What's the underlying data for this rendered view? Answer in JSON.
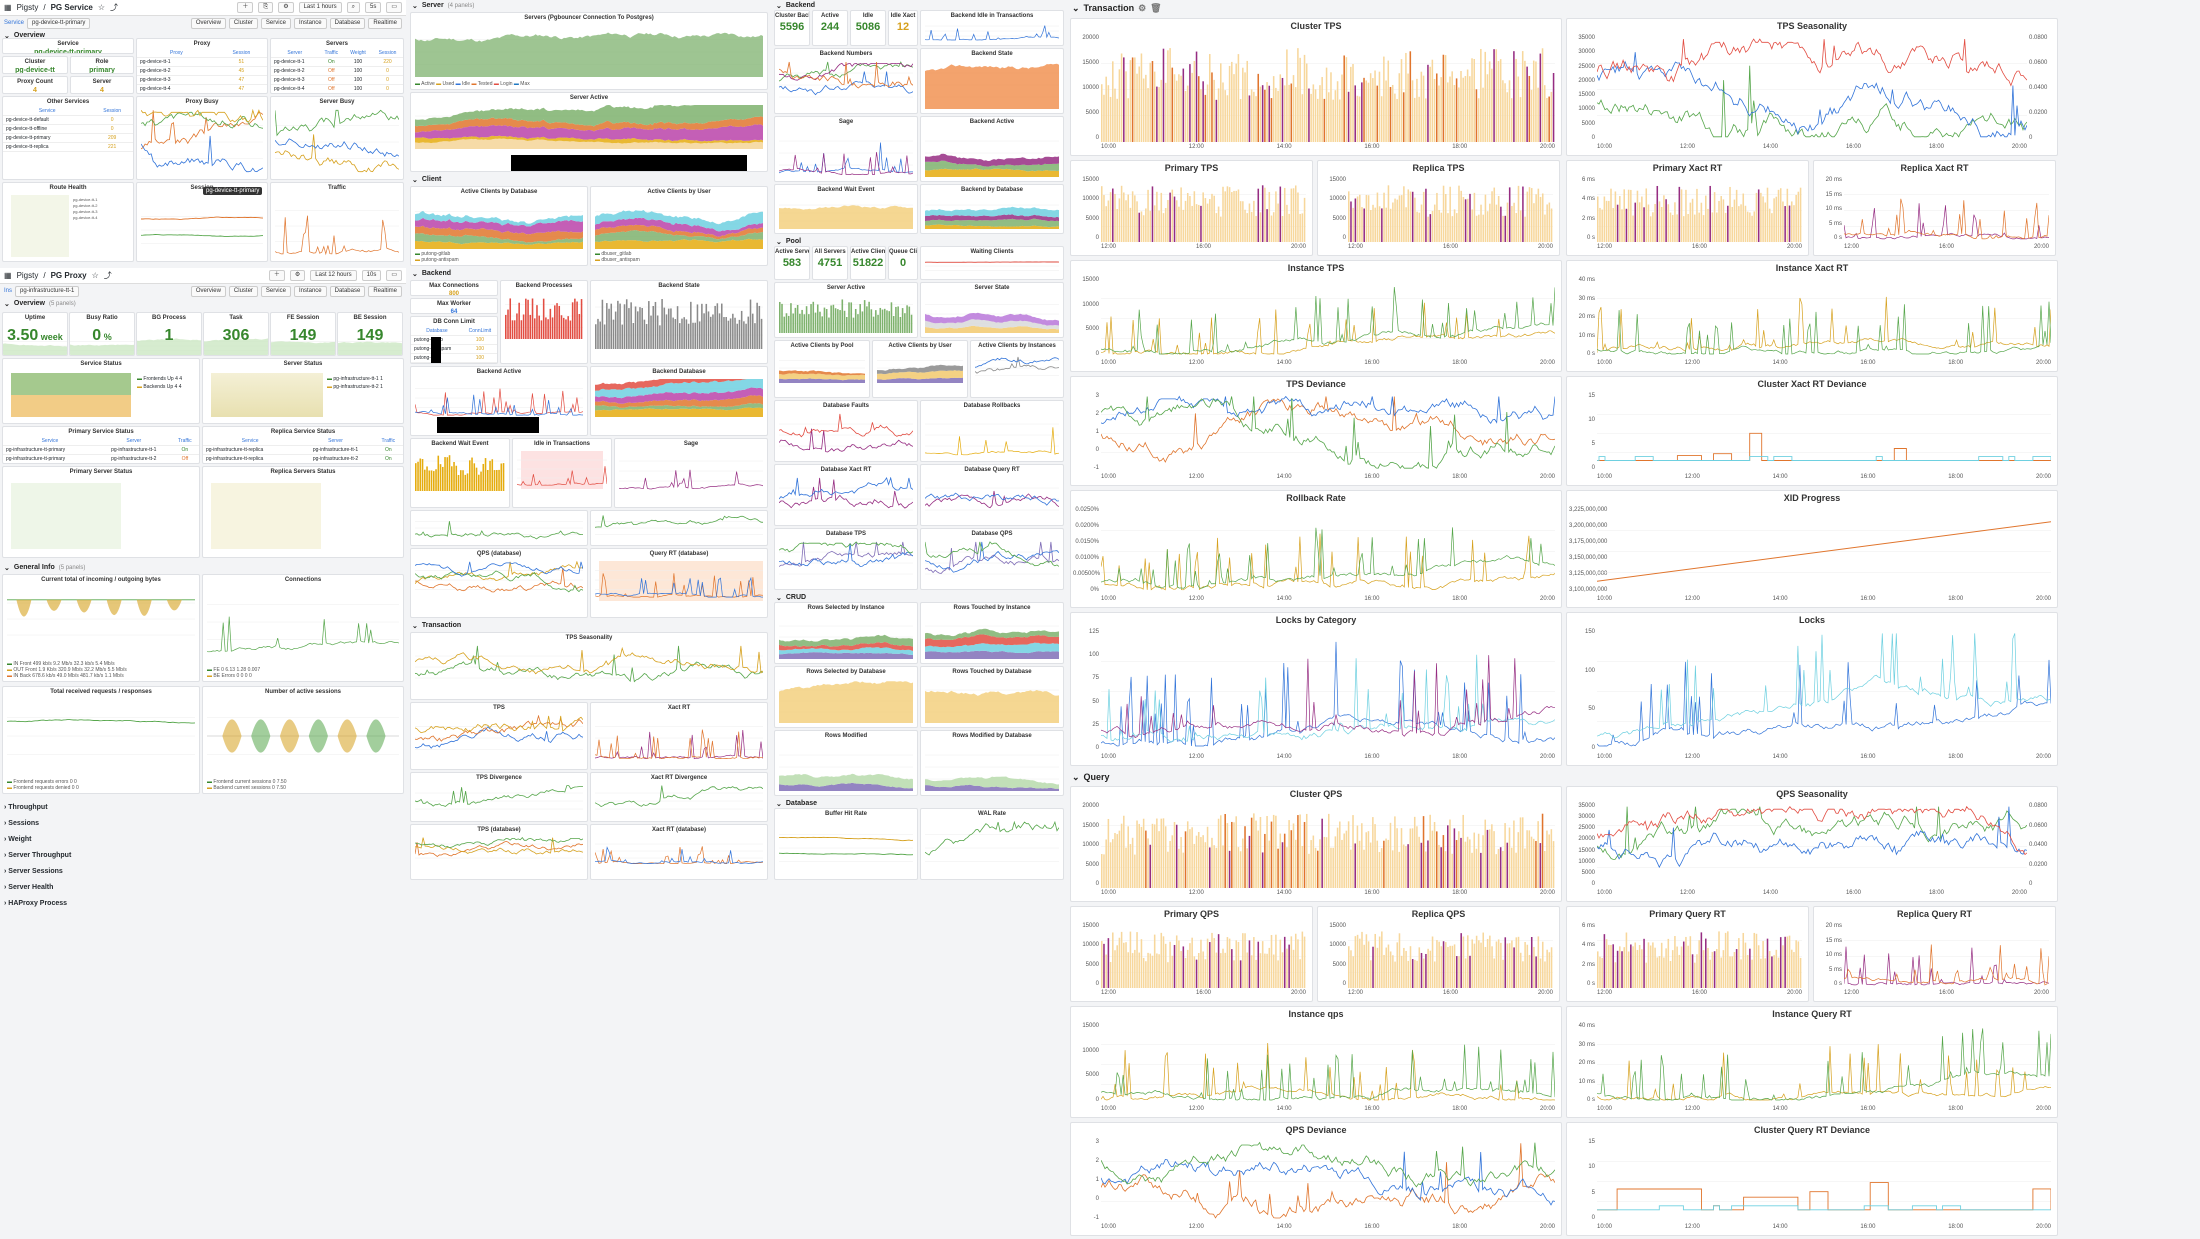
{
  "pgsvc": {
    "breadcrumb_root": "Pigsty",
    "breadcrumb_page": "PG Service",
    "time": "Last 1 hours",
    "refresh": "5s",
    "var_label": "Service",
    "var_value": "pg-device-tt-primary",
    "links": [
      "Overview",
      "Cluster",
      "Service",
      "Instance",
      "Database",
      "Realtime"
    ],
    "row_overview": "Overview",
    "service_title": "Service",
    "service_value": "pg-device-tt-primary",
    "cluster_title": "Cluster",
    "cluster_value": "pg-device-tt",
    "role_title": "Role",
    "role_value": "primary",
    "proxy_count_title": "Proxy Count",
    "proxy_count_value": "4",
    "server_title": "Server",
    "server_value": "4",
    "proxy_table": {
      "title": "Proxy",
      "cols": [
        "Proxy",
        "Session"
      ],
      "rows": [
        [
          "pg-device-tt-1",
          "51"
        ],
        [
          "pg-device-tt-2",
          "45"
        ],
        [
          "pg-device-tt-3",
          "47"
        ],
        [
          "pg-device-tt-4",
          "47"
        ]
      ]
    },
    "servers_table": {
      "title": "Servers",
      "cols": [
        "Server",
        "Traffic",
        "Weight",
        "Session"
      ],
      "rows": [
        [
          "pg-device-tt-1",
          "On",
          "100",
          "220"
        ],
        [
          "pg-device-tt-2",
          "Off",
          "100",
          "0"
        ],
        [
          "pg-device-tt-3",
          "Off",
          "100",
          "0"
        ],
        [
          "pg-device-tt-4",
          "Off",
          "100",
          "0"
        ]
      ]
    },
    "other_services": {
      "title": "Other Services",
      "cols": [
        "Service",
        "Session"
      ],
      "rows": [
        [
          "pg-device-tt-default",
          "0"
        ],
        [
          "pg-device-tt-offline",
          "0"
        ],
        [
          "pg-device-tt-primary",
          "209"
        ],
        [
          "pg-device-tt-replica",
          "221"
        ]
      ]
    },
    "proxy_busy": "Proxy Busy",
    "server_busy": "Server Busy",
    "route_health": "Route Health",
    "session": "Session",
    "traffic": "Traffic",
    "tooltip": "pg-device-tt-primary",
    "legend_busy": [
      "pg-device-tt-1",
      "pg-device-tt-2",
      "pg-device-tt-3",
      "pg-device-tt-4"
    ]
  },
  "pgproxy": {
    "breadcrumb_root": "Pigsty",
    "breadcrumb_page": "PG Proxy",
    "time": "Last 12 hours",
    "refresh": "10s",
    "var_label": "Ins",
    "var_value": "pg-infrastructure-tt-1",
    "links": [
      "Overview",
      "Cluster",
      "Service",
      "Instance",
      "Database",
      "Realtime"
    ],
    "row_overview": "Overview",
    "row_overview_cnt": "(5 panels)",
    "stats": [
      {
        "title": "Uptime",
        "value": "3.50",
        "unit": "week"
      },
      {
        "title": "Busy Ratio",
        "value": "0",
        "unit": "%"
      },
      {
        "title": "BG Process",
        "value": "1",
        "unit": ""
      },
      {
        "title": "Task",
        "value": "306",
        "unit": ""
      },
      {
        "title": "FE Session",
        "value": "149",
        "unit": ""
      },
      {
        "title": "BE Session",
        "value": "149",
        "unit": ""
      }
    ],
    "service_status": "Service Status",
    "server_status": "Server Status",
    "svc_legend": [
      [
        "Frontends Up",
        "4",
        "4"
      ],
      [
        "Backends Up",
        "4",
        "4"
      ]
    ],
    "srv_legend": [
      [
        "pg-infrastructure-tt-1",
        "1",
        "1"
      ],
      [
        "pg-infrastructure-tt-2",
        "1",
        "1"
      ]
    ],
    "primary_service_status": {
      "title": "Primary Service Status",
      "cols": [
        "Service",
        "Server",
        "Traffic"
      ],
      "rows": [
        [
          "pg-infrastructure-tt-primary",
          "pg-infrastructure-tt-1",
          "On"
        ],
        [
          "pg-infrastructure-tt-primary",
          "pg-infrastructure-tt-2",
          "Off"
        ]
      ]
    },
    "replica_service_status": {
      "title": "Replica Service Status",
      "cols": [
        "Service",
        "Server",
        "Traffic"
      ],
      "rows": [
        [
          "pg-infrastructure-tt-replica",
          "pg-infrastructure-tt-1",
          "On"
        ],
        [
          "pg-infrastructure-tt-replica",
          "pg-infrastructure-tt-2",
          "On"
        ]
      ]
    },
    "primary_server_status": "Primary Server Status",
    "replica_servers_status": "Replica Servers Status",
    "row_general": "General Info",
    "row_general_cnt": "(5 panels)",
    "bytes_title": "Current total of incoming / outgoing bytes",
    "connections": "Connections",
    "total_req": "Total received requests / responses",
    "active_sessions": "Number of active sessions",
    "bytes_legend": [
      [
        "IN Front",
        "499 kb/s",
        "9.2 Mb/s",
        "32.3 kb/s",
        "5.4 Mb/s"
      ],
      [
        "OUT Front",
        "1.9 Kb/s",
        "320.9 Mb/s",
        "32.2 Mb/s",
        "5.5 Mb/s"
      ],
      [
        "IN Back",
        "678.6 kb/s",
        "49.0 Mb/s",
        "481.7 kb/s",
        "1.1 Mb/s"
      ]
    ],
    "conn_legend": [
      [
        "FE",
        "0",
        "6.13",
        "1.28",
        "0.007"
      ],
      [
        "BE Errors",
        "0",
        "0",
        "0",
        "0"
      ]
    ],
    "req_legend": [
      [
        "Frontend requests errors",
        "0",
        "0",
        "0",
        "0"
      ],
      [
        "Frontend requests denied",
        "0",
        "0",
        "0",
        "0"
      ]
    ],
    "sess_legend": [
      [
        "Frontend current sessions",
        "0",
        "7.50",
        "1.50",
        "0"
      ],
      [
        "Backend current sessions",
        "0",
        "7.50",
        "1.50",
        "0"
      ]
    ],
    "collapsed_rows": [
      "Throughput",
      "Sessions",
      "Weight",
      "Server Throughput",
      "Server Sessions",
      "Server Health",
      "HAProxy Process"
    ]
  },
  "col2": {
    "row_server": "Server",
    "row_server_cnt": "(4 panels)",
    "servers_title": "Servers (Pgbouncer Connection To Postgres)",
    "server_active": "Server Active",
    "servers_legend": [
      "Active",
      "Used",
      "Idle",
      "Tested",
      "Login",
      "Max"
    ],
    "row_client": "Client",
    "active_clients_db": "Active Clients by Database",
    "active_clients_user": "Active Clients by User",
    "clients_db_legend": [
      "putong-gitlab",
      "putong-antispam"
    ],
    "clients_user_legend": [
      "dbuser_gitlab",
      "dbuser_antispam"
    ],
    "row_backend": "Backend",
    "max_conn": "Max Connections",
    "max_conn_value": "800",
    "max_worker": "Max Worker",
    "max_worker_value": "64",
    "db_conn_limit": {
      "title": "DB Conn Limit",
      "cols": [
        "Database",
        "ConnLimit"
      ],
      "rows": [
        [
          "putong-gitlab",
          "100"
        ],
        [
          "putong-antispam",
          "100"
        ],
        [
          "putong-ms",
          "100"
        ]
      ]
    },
    "backend_processes": "Backend Processes",
    "backend_state": "Backend State",
    "backend_active": "Backend Active",
    "backend_database": "Backend Database",
    "backend_wait_event": "Backend Wait Event",
    "idle_in_tx": "Idle in Transactions",
    "sage": "Sage",
    "qps_db": "QPS (database)",
    "query_rt_db": "Query RT (database)",
    "row_transaction": "Transaction",
    "tps_seasonality": "TPS Seasonality",
    "tps": "TPS",
    "xact_rt": "Xact RT",
    "tps_divergence": "TPS Divergence",
    "xact_rt_divergence": "Xact RT Divergence",
    "tps_db": "TPS (database)",
    "xact_rt_db": "Xact RT (database)"
  },
  "col3": {
    "row_backend": "Backend",
    "cluster_backends": "Cluster Backe...",
    "active": "Active",
    "idle": "Idle",
    "idle_xact": "Idle Xact",
    "cb_value": "5596",
    "active_value": "244",
    "idle_value": "5086",
    "idle_xact_value": "12",
    "backend_idle_tx": "Backend Idle in Transactions",
    "backend_numbers": "Backend Numbers",
    "backend_state": "Backend State",
    "sage": "Sage",
    "backend_active": "Backend Active",
    "backend_wait_event": "Backend Wait Event",
    "backend_by_db": "Backend by Database",
    "row_pool": "Pool",
    "active_servers": "Active Servers",
    "all_servers": "All Servers",
    "active_clients": "Active Clients",
    "queue_clients": "Queue Clients",
    "as_value": "583",
    "all_value": "4751",
    "ac_value": "51822",
    "qc_value": "0",
    "waiting_clients": "Waiting Clients",
    "server_active": "Server Active",
    "server_state": "Server State",
    "acp": "Active Clients by Pool",
    "acu": "Active Clients by User",
    "aci": "Active Clients by Instances",
    "db_faults": "Database Faults",
    "db_rollbacks": "Database Rollbacks",
    "db_xact_rt": "Database Xact RT",
    "db_query_rt": "Database Query RT",
    "db_tps": "Database TPS",
    "db_qps": "Database QPS",
    "row_crud": "CRUD",
    "rows_sel_inst": "Rows Selected by Instance",
    "rows_touch_inst": "Rows Touched by Instance",
    "rows_sel_db": "Rows Selected by Database",
    "rows_touch_db": "Rows Touched by Database",
    "rows_mod": "Rows Modified",
    "rows_mod_db": "Rows Modified by Database",
    "row_database": "Database",
    "buffer_hit": "Buffer Hit Rate",
    "wal_rate": "WAL Rate"
  },
  "col4": {
    "row_transaction": "Transaction",
    "cluster_tps": "Cluster TPS",
    "tps_seasonality": "TPS Seasonality",
    "primary_tps": "Primary TPS",
    "replica_tps": "Replica TPS",
    "primary_xact_rt": "Primary Xact RT",
    "replica_xact_rt": "Replica Xact RT",
    "instance_tps": "Instance TPS",
    "instance_xact_rt": "Instance Xact RT",
    "tps_deviance": "TPS Deviance",
    "cluster_xact_rt_deviance": "Cluster Xact RT Deviance",
    "rollback_rate": "Rollback Rate",
    "xid_progress": "XID Progress",
    "locks_by_category": "Locks by Category",
    "locks": "Locks",
    "row_query": "Query",
    "cluster_qps": "Cluster QPS",
    "qps_seasonality": "QPS Seasonality",
    "primary_qps": "Primary QPS",
    "replica_qps": "Replica QPS",
    "primary_query_rt": "Primary Query RT",
    "replica_query_rt": "Replica Query RT",
    "instance_qps": "Instance qps",
    "instance_query_rt": "Instance Query RT",
    "qps_deviance": "QPS Deviance",
    "cluster_query_rt_deviance": "Cluster Query RT Deviance",
    "xticks": [
      "10:00",
      "12:00",
      "14:00",
      "16:00",
      "18:00",
      "20:00"
    ],
    "ct_y": [
      "20000",
      "15000",
      "10000",
      "5000",
      "0"
    ],
    "ts_y": [
      "35000",
      "30000",
      "25000",
      "20000",
      "15000",
      "10000",
      "5000",
      "0"
    ],
    "xid_y": [
      "3,225,000,000",
      "3,200,000,000",
      "3,175,000,000",
      "3,150,000,000",
      "3,125,000,000",
      "3,100,000,000"
    ],
    "rb_y": [
      "0.0250%",
      "0.0200%",
      "0.0150%",
      "0.0100%",
      "0.00500%",
      "0%"
    ],
    "locks_y": [
      "125",
      "100",
      "75",
      "50",
      "25",
      "0"
    ],
    "locks2_y": [
      "150",
      "100",
      "50",
      "0"
    ],
    "ts_r": [
      "0.0800",
      "0.0600",
      "0.0400",
      "0.0200",
      "0"
    ],
    "ms_y": [
      "6 ms",
      "4 ms",
      "2 ms",
      "0 s"
    ],
    "rxr_y": [
      "20 ms",
      "15 ms",
      "10 ms",
      "5 ms",
      "0 s"
    ],
    "ixr_y": [
      "40 ms",
      "30 ms",
      "20 ms",
      "10 ms",
      "0 s"
    ],
    "small_y": [
      "15000",
      "10000",
      "5000",
      "0"
    ],
    "dev_y": [
      "3",
      "2",
      "1",
      "0",
      "-1"
    ],
    "cxd_y": [
      "15",
      "10",
      "5",
      "0"
    ]
  },
  "colors": {
    "green": "#37872d",
    "orange": "#e0752d",
    "yellow": "#d6a11e",
    "blue": "#3274d9",
    "text_green": "#56a64b"
  }
}
